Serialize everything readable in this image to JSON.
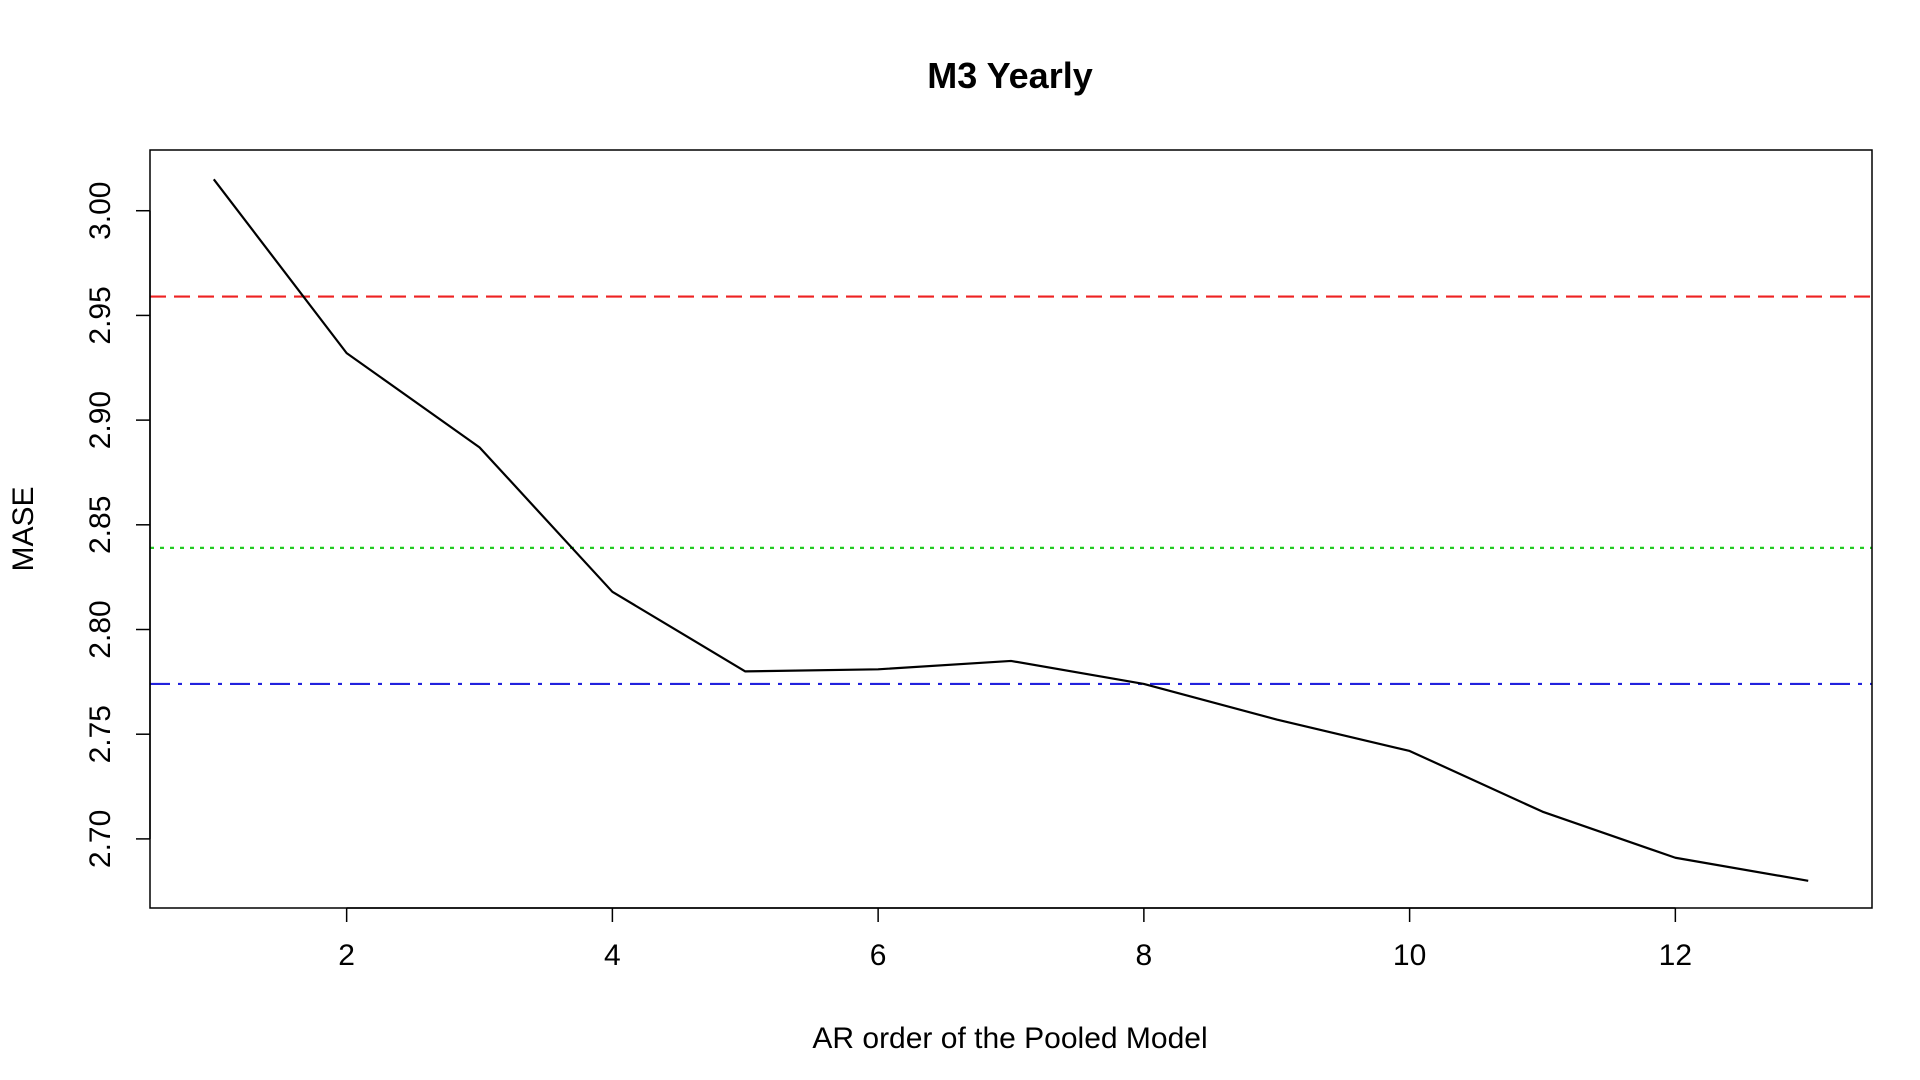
{
  "chart_data": {
    "type": "line",
    "title": "M3 Yearly",
    "xlabel": "AR order of the Pooled Model",
    "ylabel": "MASE",
    "xlim": [
      0.52,
      13.48
    ],
    "ylim": [
      2.667,
      3.029
    ],
    "x_ticks": [
      2,
      4,
      6,
      8,
      10,
      12
    ],
    "x_tick_labels": [
      "2",
      "4",
      "6",
      "8",
      "10",
      "12"
    ],
    "y_ticks": [
      2.7,
      2.75,
      2.8,
      2.85,
      2.9,
      2.95,
      3.0
    ],
    "y_tick_labels": [
      "2.70",
      "2.75",
      "2.80",
      "2.85",
      "2.90",
      "2.95",
      "3.00"
    ],
    "grid": false,
    "series": [
      {
        "color": "#000000",
        "style": "solid",
        "x": [
          1,
          2,
          3,
          4,
          5,
          6,
          7,
          8,
          9,
          10,
          11,
          12,
          13
        ],
        "y": [
          3.015,
          2.932,
          2.887,
          2.818,
          2.78,
          2.781,
          2.785,
          2.774,
          2.757,
          2.742,
          2.713,
          2.691,
          2.68
        ]
      }
    ],
    "reference_lines": [
      {
        "y": 2.959,
        "color": "#ee2222",
        "style": "dashed"
      },
      {
        "y": 2.839,
        "color": "#22cc22",
        "style": "dotted"
      },
      {
        "y": 2.774,
        "color": "#2222dd",
        "style": "dashdot"
      }
    ]
  }
}
